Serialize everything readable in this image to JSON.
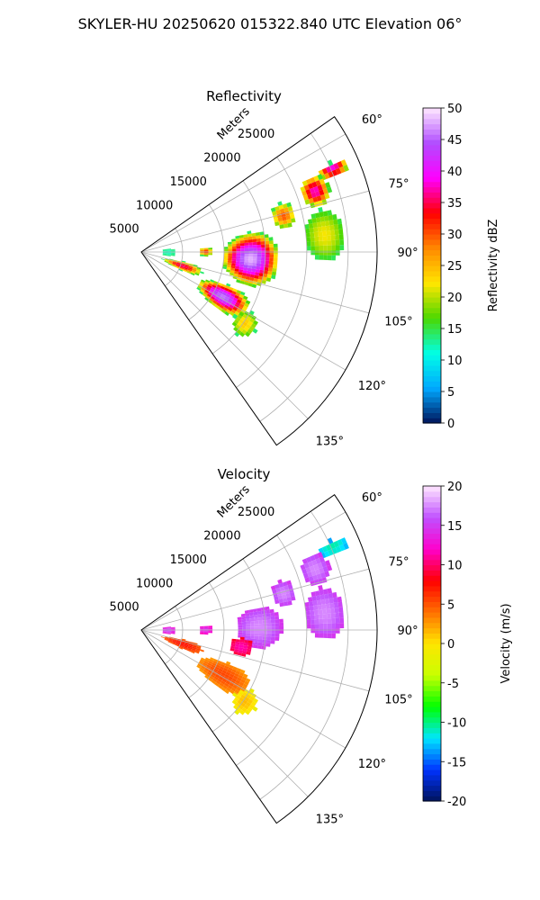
{
  "figure_title": "SKYLER-HU  20250620  015322.840 UTC Elevation 06°",
  "chart_data": [
    {
      "type": "heatmap",
      "subtype": "polar-sector (PPI)",
      "title": "Reflectivity",
      "range_label": "Meters",
      "range_ticks": [
        5000,
        10000,
        15000,
        20000,
        25000
      ],
      "range_max": 28500,
      "azimuth_range_deg": [
        55,
        145
      ],
      "azimuth_ticks": [
        "60°",
        "75°",
        "90°",
        "105°",
        "120°",
        "135°"
      ],
      "colorbar": {
        "label": "Reflectivity dBZ",
        "min": 0,
        "max": 50,
        "ticks": [
          0,
          5,
          10,
          15,
          20,
          25,
          30,
          35,
          40,
          45,
          50
        ],
        "colors": [
          "#00135a",
          "#00a8ff",
          "#00ffe6",
          "#4bd800",
          "#ffe600",
          "#ff8800",
          "#ff0000",
          "#ff00ff",
          "#b04cff",
          "#ffe8ff"
        ]
      },
      "echoes": [
        {
          "az": 66,
          "r": 25000,
          "dr": 2000,
          "daz": 2,
          "peak": 40
        },
        {
          "az": 70,
          "r": 22000,
          "dr": 1800,
          "daz": 5,
          "peak": 38
        },
        {
          "az": 75,
          "r": 17500,
          "dr": 1500,
          "daz": 5,
          "peak": 30
        },
        {
          "az": 90,
          "r": 3000,
          "dr": 900,
          "daz": 8,
          "peak": 12
        },
        {
          "az": 89,
          "r": 7500,
          "dr": 900,
          "daz": 4,
          "peak": 32
        },
        {
          "az": 93,
          "r": 13000,
          "dr": 3500,
          "daz": 14,
          "peak": 48
        },
        {
          "az": 84,
          "r": 22000,
          "dr": 2500,
          "daz": 8,
          "peak": 22
        },
        {
          "az": 108,
          "r": 5000,
          "dr": 2500,
          "daz": 6,
          "peak": 36
        },
        {
          "az": 118,
          "r": 11000,
          "dr": 3500,
          "daz": 8,
          "peak": 46
        },
        {
          "az": 124,
          "r": 15000,
          "dr": 1500,
          "daz": 6,
          "peak": 24
        }
      ]
    },
    {
      "type": "heatmap",
      "subtype": "polar-sector (PPI)",
      "title": "Velocity",
      "range_label": "Meters",
      "range_ticks": [
        5000,
        10000,
        15000,
        20000,
        25000
      ],
      "range_max": 28500,
      "azimuth_range_deg": [
        55,
        145
      ],
      "azimuth_ticks": [
        "60°",
        "75°",
        "90°",
        "105°",
        "120°",
        "135°"
      ],
      "colorbar": {
        "label": "Velocity (m/s)",
        "min": -20,
        "max": 20,
        "ticks": [
          -20,
          -15,
          -10,
          -5,
          0,
          5,
          10,
          15,
          20
        ],
        "colors": [
          "#00135a",
          "#0033ff",
          "#00e6ff",
          "#00ff00",
          "#c8ff00",
          "#ffe600",
          "#ff7000",
          "#ff0000",
          "#ff00cc",
          "#c050ff",
          "#ffe8ff"
        ]
      },
      "echoes": [
        {
          "az": 66,
          "r": 25000,
          "dr": 2000,
          "daz": 2,
          "v": -12
        },
        {
          "az": 70,
          "r": 22000,
          "dr": 1800,
          "daz": 5,
          "v": 16
        },
        {
          "az": 75,
          "r": 17500,
          "dr": 1500,
          "daz": 5,
          "v": 16
        },
        {
          "az": 90,
          "r": 3000,
          "dr": 900,
          "daz": 8,
          "v": 14
        },
        {
          "az": 89,
          "r": 7500,
          "dr": 900,
          "daz": 4,
          "v": 13
        },
        {
          "az": 88,
          "r": 14000,
          "dr": 2800,
          "daz": 10,
          "v": 16
        },
        {
          "az": 99,
          "r": 12000,
          "dr": 1500,
          "daz": 5,
          "v": 10
        },
        {
          "az": 84,
          "r": 22000,
          "dr": 2500,
          "daz": 8,
          "v": 16
        },
        {
          "az": 108,
          "r": 5000,
          "dr": 2500,
          "daz": 6,
          "v": 6
        },
        {
          "az": 118,
          "r": 11000,
          "dr": 3500,
          "daz": 8,
          "v": 4
        },
        {
          "az": 124,
          "r": 15000,
          "dr": 1500,
          "daz": 6,
          "v": 0
        }
      ]
    }
  ]
}
